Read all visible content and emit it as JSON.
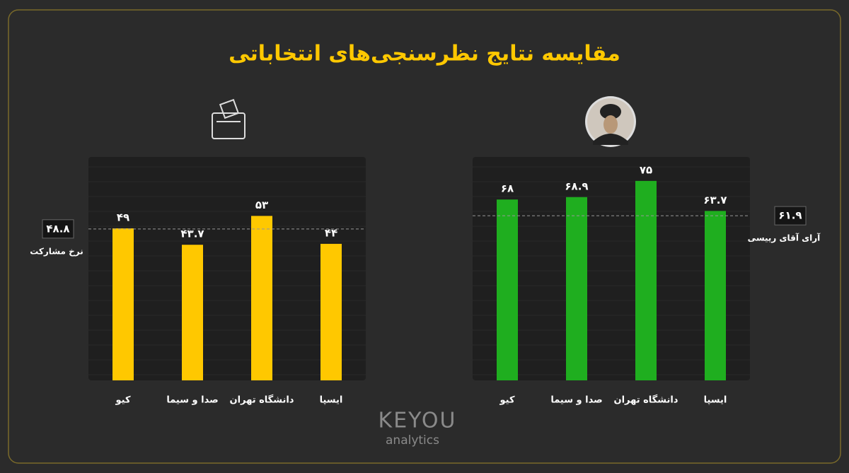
{
  "title": "مقایسه نتایج نظرسنجی‌های انتخاباتی",
  "brand": {
    "name": "KEYOU",
    "sub": "analytics"
  },
  "chart_data": [
    {
      "type": "bar",
      "categories": [
        "کیو",
        "صدا و سیما",
        "دانشگاه تهران",
        "ایسپا"
      ],
      "values": [
        49,
        43.7,
        53,
        44
      ],
      "value_labels": [
        "۴۹",
        "۴۳.۷",
        "۵۳",
        "۴۴"
      ],
      "color": "#ffc800",
      "ylim": [
        0,
        72
      ],
      "reference": {
        "value": 48.8,
        "label": "۴۸.۸",
        "text": "نرخ مشارکت"
      }
    },
    {
      "type": "bar",
      "categories": [
        "کیو",
        "صدا و سیما",
        "دانشگاه تهران",
        "ایسپا"
      ],
      "values": [
        68,
        68.9,
        75,
        63.7
      ],
      "value_labels": [
        "۶۸",
        "۶۸.۹",
        "۷۵",
        "۶۳.۷"
      ],
      "color": "#1fae1f",
      "ylim": [
        0,
        84
      ],
      "reference": {
        "value": 61.9,
        "label": "۶۱.۹",
        "text": "آرای آقای رییسی"
      }
    }
  ]
}
